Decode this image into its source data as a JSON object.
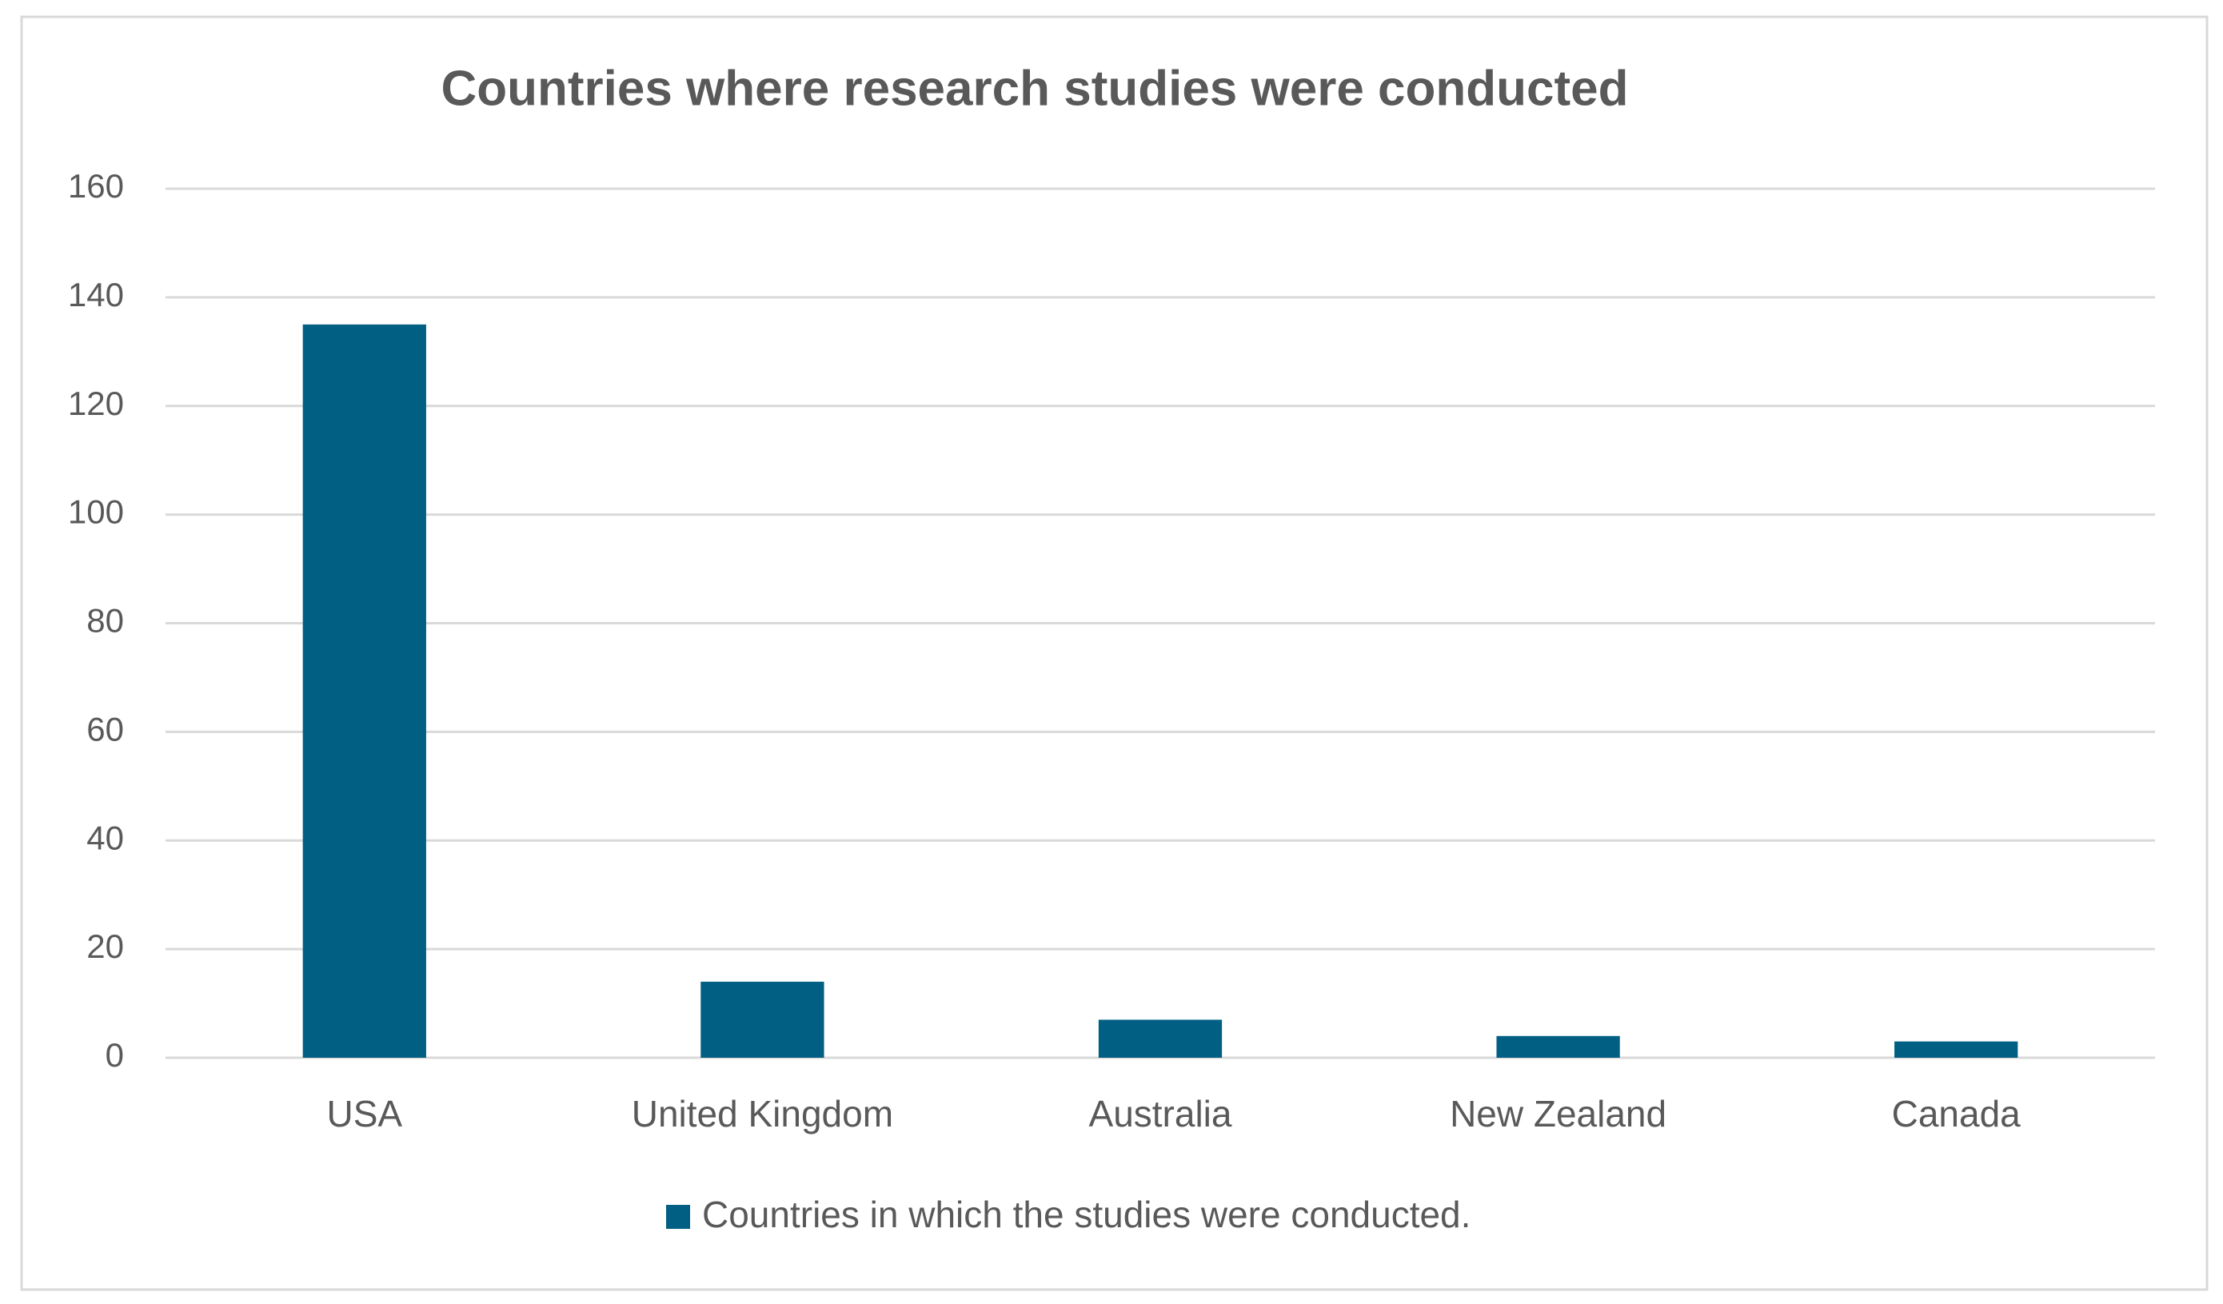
{
  "chart_data": {
    "type": "bar",
    "title": "Countries where research studies were conducted",
    "categories": [
      "USA",
      "United Kingdom",
      "Australia",
      "New Zealand",
      "Canada"
    ],
    "series": [
      {
        "name": "Countries in which the studies were conducted.",
        "color": "#005f83",
        "values": [
          135,
          14,
          7,
          4,
          3
        ]
      }
    ],
    "ylim": [
      0,
      160
    ],
    "yticks": [
      0,
      20,
      40,
      60,
      80,
      100,
      120,
      140,
      160
    ],
    "grid": true,
    "legend": "bottom"
  }
}
